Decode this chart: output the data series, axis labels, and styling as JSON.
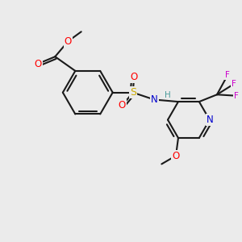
{
  "bg_color": "#ebebeb",
  "bond_color": "#1a1a1a",
  "atom_colors": {
    "O": "#ff0000",
    "N": "#0000cc",
    "S": "#ccaa00",
    "F": "#cc00cc",
    "H": "#4a9a9a",
    "C": "#1a1a1a"
  },
  "font_size": 7.5,
  "line_width": 1.5
}
